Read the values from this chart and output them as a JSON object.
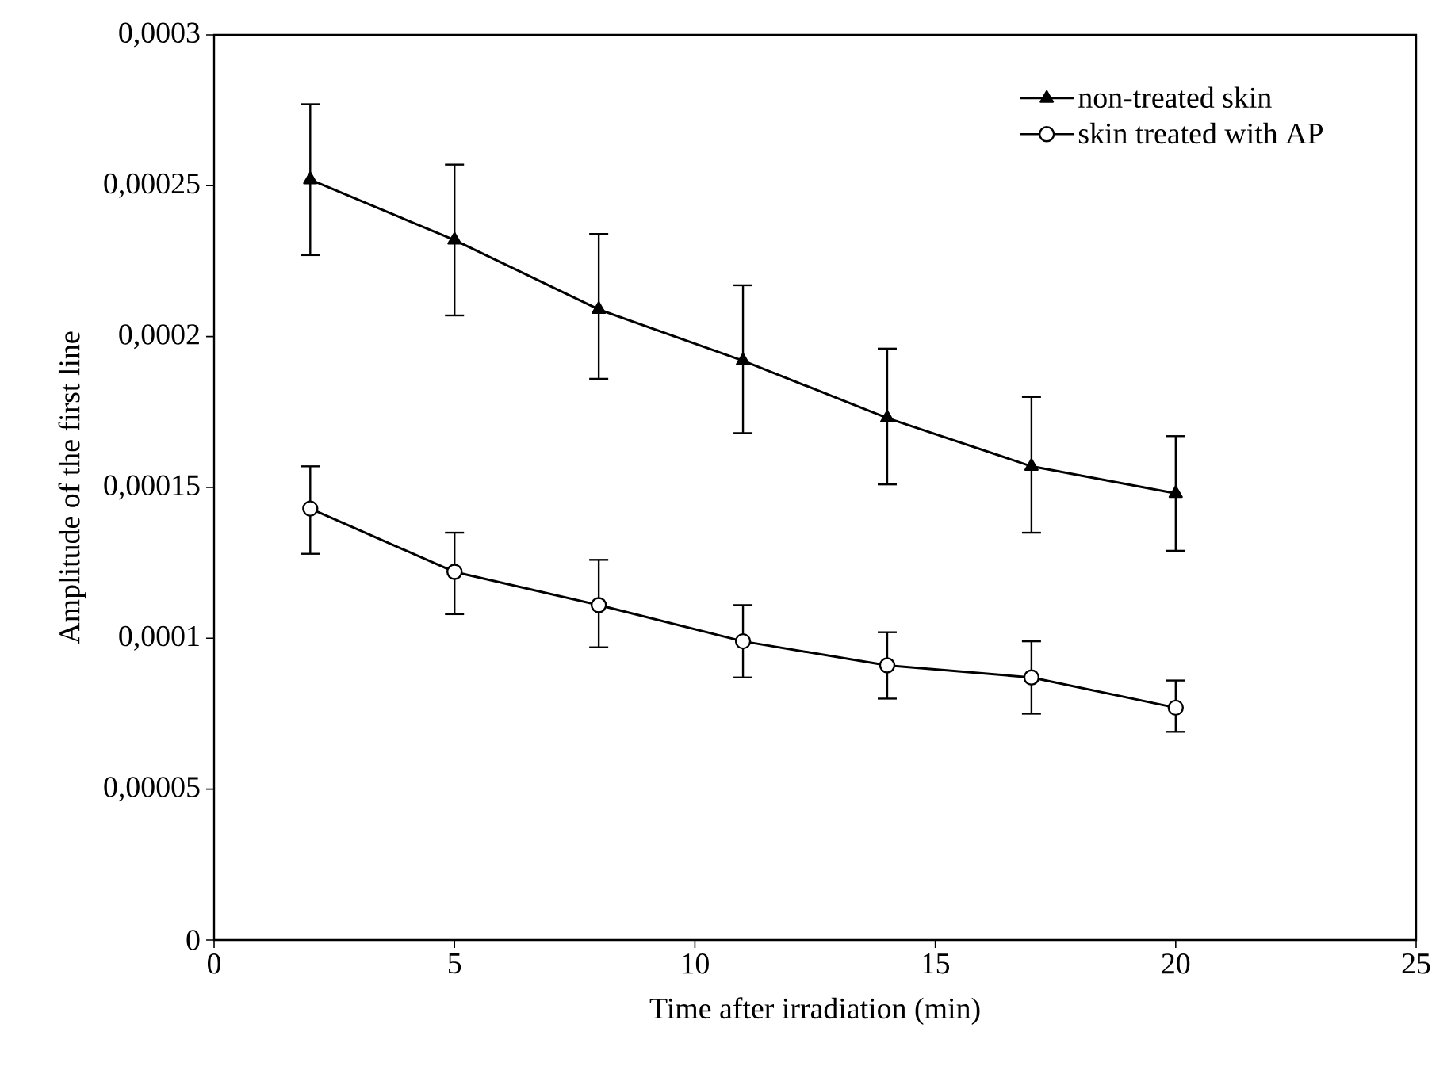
{
  "chart_data": {
    "type": "line",
    "xlabel": "Time after irradiation (min)",
    "ylabel": "Amplitude of the first line",
    "x": [
      2,
      5,
      8,
      11,
      14,
      17,
      20
    ],
    "series": [
      {
        "name": "non-treated skin",
        "color": "#000000",
        "marker": "triangle",
        "values": [
          0.000252,
          0.000232,
          0.000209,
          0.000192,
          0.000173,
          0.000157,
          0.000148
        ],
        "errors": [
          [
            0.000227,
            0.000277
          ],
          [
            0.000207,
            0.000257
          ],
          [
            0.000186,
            0.000234
          ],
          [
            0.000168,
            0.000217
          ],
          [
            0.000151,
            0.000196
          ],
          [
            0.000135,
            0.00018
          ],
          [
            0.000129,
            0.000167
          ]
        ]
      },
      {
        "name": "skin treated with AP",
        "color": "#000000",
        "marker": "circle",
        "values": [
          0.000143,
          0.000122,
          0.000111,
          9.9e-05,
          9.1e-05,
          8.7e-05,
          7.7e-05
        ],
        "errors": [
          [
            0.000128,
            0.000157
          ],
          [
            0.000108,
            0.000135
          ],
          [
            9.7e-05,
            0.000126
          ],
          [
            8.7e-05,
            0.000111
          ],
          [
            8e-05,
            0.000102
          ],
          [
            7.5e-05,
            9.9e-05
          ],
          [
            6.9e-05,
            8.6e-05
          ]
        ]
      }
    ],
    "xlim": [
      0,
      25
    ],
    "xticks": [
      0,
      5,
      10,
      15,
      20,
      25
    ],
    "ylim": [
      0,
      0.0003
    ],
    "yticks": [
      {
        "value": 0,
        "label": "0"
      },
      {
        "value": 5e-05,
        "label": "0,00005"
      },
      {
        "value": 0.0001,
        "label": "0,0001"
      },
      {
        "value": 0.00015,
        "label": "0,00015"
      },
      {
        "value": 0.0002,
        "label": "0,0002"
      },
      {
        "value": 0.00025,
        "label": "0,00025"
      },
      {
        "value": 0.0003,
        "label": "0,0003"
      }
    ],
    "legend": "top right",
    "line_style": "solid"
  }
}
